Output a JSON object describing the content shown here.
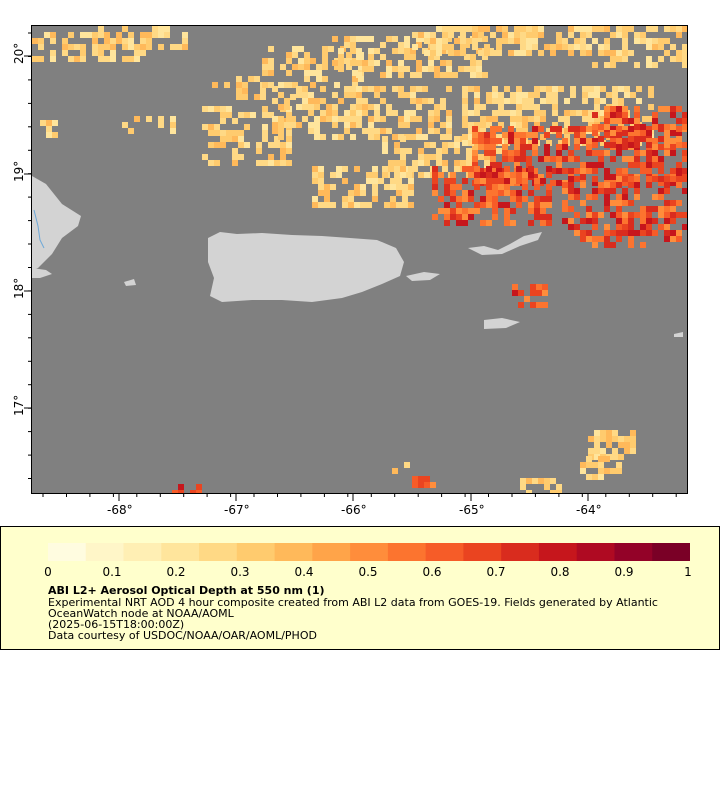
{
  "map": {
    "background_color": "#808080",
    "land_color": "#d3d3d3",
    "lon_ticks": [
      "-68°",
      "-67°",
      "-66°",
      "-65°",
      "-64°"
    ],
    "lat_ticks": [
      "20°",
      "19°",
      "18°",
      "17°"
    ]
  },
  "legend": {
    "colorbar_ticks": [
      "0",
      "0.1",
      "0.2",
      "0.3",
      "0.4",
      "0.5",
      "0.6",
      "0.7",
      "0.8",
      "0.9",
      "1"
    ],
    "colors": [
      "#fffce0",
      "#fff6c8",
      "#ffefb4",
      "#ffe59c",
      "#ffd985",
      "#ffcb6e",
      "#ffb95a",
      "#ffa449",
      "#ff8d3b",
      "#fc742f",
      "#f65c28",
      "#ea4420",
      "#d92c1e",
      "#c6161c",
      "#af0a22",
      "#930228",
      "#7a0026"
    ],
    "title": "ABI L2+ Aerosol Optical Depth at 550 nm (1)",
    "line1": "Experimental NRT AOD 4 hour composite created from ABI L2 data from GOES-19. Fields generated by Atlantic",
    "line2": "OceanWatch node at NOAA/AOML",
    "line3": "(2025-06-15T18:00:00Z)",
    "line4": "Data courtesy of USDOC/NOAA/OAR/AOML/PHOD"
  }
}
